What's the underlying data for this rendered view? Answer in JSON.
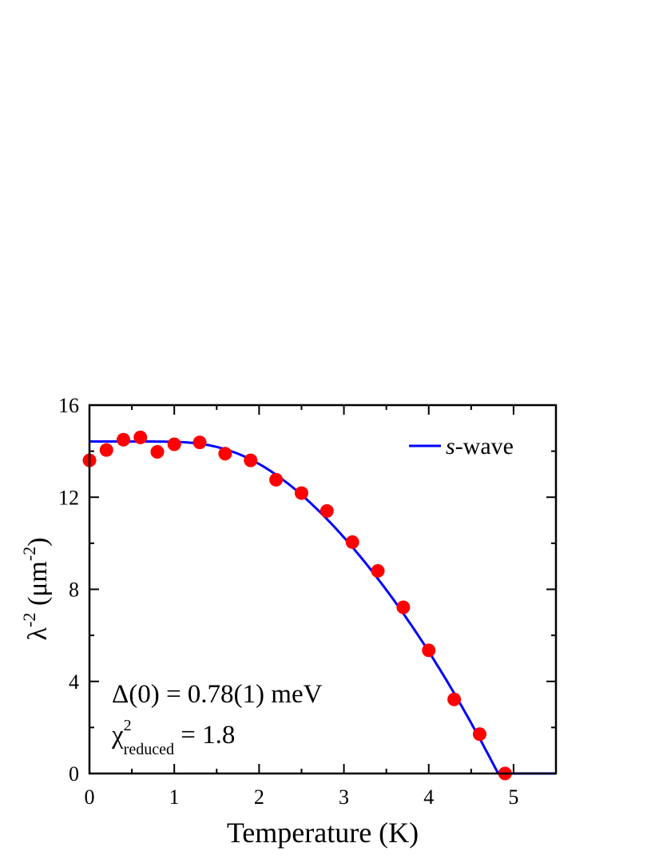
{
  "chart_data": {
    "type": "scatter",
    "title": "",
    "xlabel": "Temperature (K)",
    "ylabel": {
      "base": "λ",
      "sup": "-2",
      "unit_open": " (μm",
      "unit_sup": "-2",
      "unit_close": ")"
    },
    "xlim": [
      0,
      5.5
    ],
    "ylim": [
      0,
      16
    ],
    "x_ticks": [
      0,
      1,
      2,
      3,
      4,
      5
    ],
    "y_ticks": [
      0,
      4,
      8,
      12,
      16
    ],
    "grid": false,
    "series": [
      {
        "kind": "points",
        "color": "#ff0000",
        "x": [
          0,
          0.2,
          0.4,
          0.6,
          0.8,
          1.0,
          1.3,
          1.6,
          1.9,
          2.2,
          2.5,
          2.8,
          3.1,
          3.4,
          3.7,
          4.0,
          4.3,
          4.6,
          4.9
        ],
        "y": [
          13.6,
          14.05,
          14.5,
          14.6,
          13.97,
          14.3,
          14.38,
          13.89,
          13.6,
          12.76,
          12.18,
          11.4,
          10.05,
          8.8,
          7.22,
          5.35,
          3.22,
          1.71,
          0.0
        ]
      },
      {
        "kind": "line",
        "name_italic": "s",
        "name_rest": "-wave",
        "color": "#0000ff",
        "model": {
          "lambda_inv2_0": 14.42,
          "Tc": 4.82,
          "gap0_meV": 0.78
        }
      }
    ],
    "legend": "top-right",
    "annotations": {
      "gap": "Δ(0) = 0.78(1) meV",
      "chi_base": "χ",
      "chi_sup": "2",
      "chi_sub": "reduced",
      "chi_value": " = 1.8"
    }
  }
}
